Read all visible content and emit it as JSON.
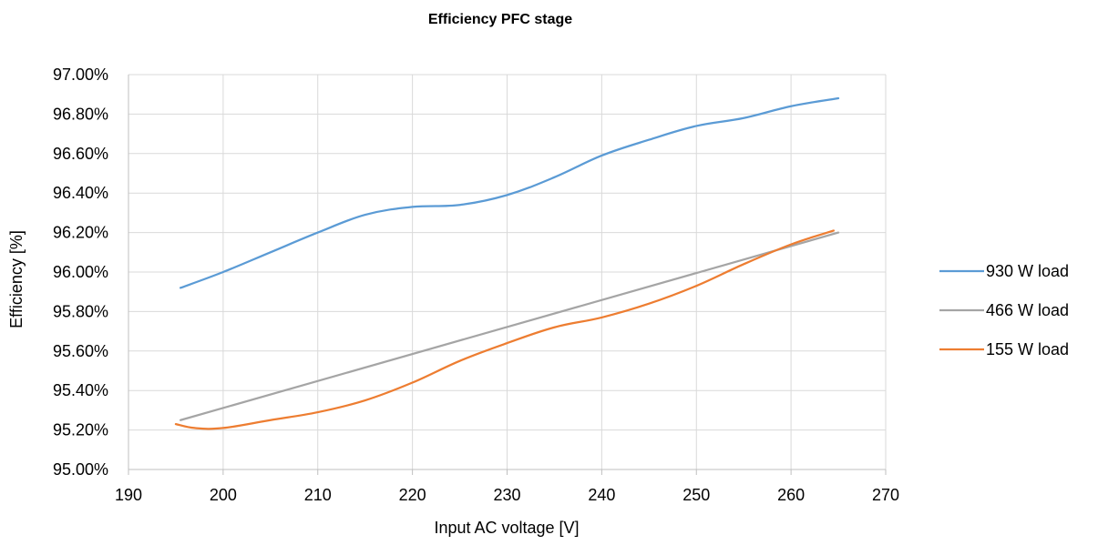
{
  "chart_data": {
    "type": "line",
    "title": "Efficiency PFC stage",
    "xlabel": "Input AC voltage [V]",
    "ylabel": "Efficiency [%]",
    "xlim": [
      190,
      270
    ],
    "ylim": [
      95.0,
      97.0
    ],
    "x_ticks": [
      "190",
      "200",
      "210",
      "220",
      "230",
      "240",
      "250",
      "260",
      "270"
    ],
    "y_ticks": [
      "95.00%",
      "95.20%",
      "95.40%",
      "95.60%",
      "95.80%",
      "96.00%",
      "96.20%",
      "96.40%",
      "96.60%",
      "96.80%",
      "97.00%"
    ],
    "grid": "vertical and horizontal",
    "legend_position": "right",
    "series": [
      {
        "name": "930 W load",
        "color": "#5b9bd5",
        "x": [
          195.5,
          200,
          205,
          210,
          215,
          220,
          225,
          230,
          235,
          240,
          245,
          250,
          255,
          260,
          265
        ],
        "y": [
          95.92,
          96.0,
          96.1,
          96.2,
          96.29,
          96.33,
          96.34,
          96.39,
          96.48,
          96.59,
          96.67,
          96.74,
          96.78,
          96.84,
          96.88
        ]
      },
      {
        "name": "466 W load",
        "color": "#a5a5a5",
        "x": [
          195.5,
          265
        ],
        "y": [
          95.25,
          96.2
        ]
      },
      {
        "name": "155 W load",
        "color": "#ed7d31",
        "x": [
          195,
          197,
          200,
          205,
          210,
          215,
          220,
          225,
          230,
          235,
          240,
          245,
          250,
          255,
          260,
          264.5
        ],
        "y": [
          95.23,
          95.21,
          95.21,
          95.25,
          95.29,
          95.35,
          95.44,
          95.55,
          95.64,
          95.72,
          95.77,
          95.84,
          95.93,
          96.04,
          96.14,
          96.21
        ]
      }
    ]
  }
}
